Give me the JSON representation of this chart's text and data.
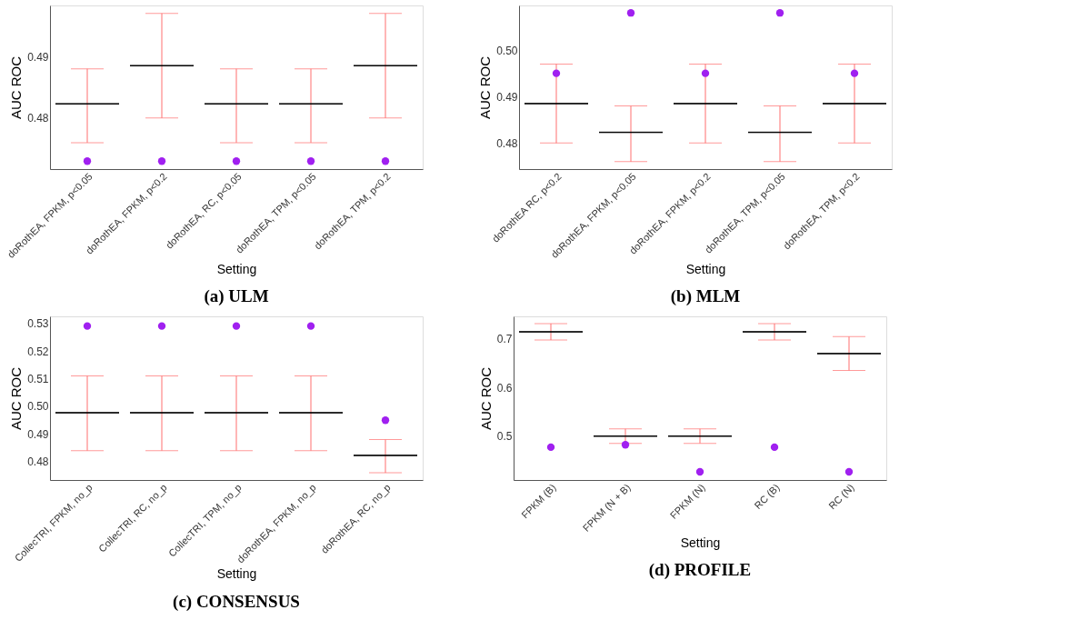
{
  "chart_data": [
    {
      "type": "box",
      "title": "(a) ULM",
      "xlabel": "Setting",
      "ylabel": "AUC ROC",
      "categories": [
        "doRothEA, FPKM, p<0.05",
        "doRothEA, FPKM, p<0.2",
        "doRothEA, RC, p<0.05",
        "doRothEA, TPM, p<0.05",
        "doRothEA, TPM, p<0.2"
      ],
      "ylim": [
        0.4717,
        0.4983
      ],
      "yticks": [
        0.48,
        0.49
      ],
      "grid": false,
      "marker": "circle",
      "series": [
        {
          "color": "#000000",
          "boxes": [
            {
              "low": 0.476,
              "q1": 0.4823,
              "median": 0.4823,
              "q3": 0.4823,
              "high": 0.488
            },
            {
              "low": 0.48,
              "q1": 0.4885,
              "median": 0.4885,
              "q3": 0.4885,
              "high": 0.497
            },
            {
              "low": 0.476,
              "q1": 0.4823,
              "median": 0.4823,
              "q3": 0.4823,
              "high": 0.488
            },
            {
              "low": 0.476,
              "q1": 0.4823,
              "median": 0.4823,
              "q3": 0.4823,
              "high": 0.488
            },
            {
              "low": 0.48,
              "q1": 0.4885,
              "median": 0.4885,
              "q3": 0.4885,
              "high": 0.497
            }
          ]
        },
        {
          "type": "scatter",
          "color": "#a020f0",
          "x": [
            "doRothEA, FPKM, p<0.05",
            "doRothEA, FPKM, p<0.2",
            "doRothEA, RC, p<0.05",
            "doRothEA, TPM, p<0.05",
            "doRothEA, TPM, p<0.2"
          ],
          "values": [
            0.473,
            0.473,
            0.473,
            0.473,
            0.473
          ]
        }
      ]
    },
    {
      "type": "box",
      "title": "(b) MLM",
      "xlabel": "Setting",
      "ylabel": "AUC ROC",
      "categories": [
        "doRothEA RC, p<0.2",
        "doRothEA, FPKM, p<0.05",
        "doRothEA, FPKM, p<0.2",
        "doRothEA, TPM, p<0.05",
        "doRothEA, TPM, p<0.2"
      ],
      "ylim": [
        0.4744,
        0.5096
      ],
      "yticks": [
        0.48,
        0.49,
        {
          "value": 0.5,
          "label": "0.50"
        }
      ],
      "grid": false,
      "marker": "circle",
      "series": [
        {
          "color": "#000000",
          "boxes": [
            {
              "low": 0.48,
              "q1": 0.4885,
              "median": 0.4885,
              "q3": 0.4885,
              "high": 0.497
            },
            {
              "low": 0.476,
              "q1": 0.4823,
              "median": 0.4823,
              "q3": 0.4823,
              "high": 0.488
            },
            {
              "low": 0.48,
              "q1": 0.4885,
              "median": 0.4885,
              "q3": 0.4885,
              "high": 0.497
            },
            {
              "low": 0.476,
              "q1": 0.4823,
              "median": 0.4823,
              "q3": 0.4823,
              "high": 0.488
            },
            {
              "low": 0.48,
              "q1": 0.4885,
              "median": 0.4885,
              "q3": 0.4885,
              "high": 0.497
            }
          ]
        },
        {
          "type": "scatter",
          "color": "#a020f0",
          "x": [
            "doRothEA RC, p<0.2",
            "doRothEA, FPKM, p<0.05",
            "doRothEA, FPKM, p<0.2",
            "doRothEA, TPM, p<0.05",
            "doRothEA, TPM, p<0.2"
          ],
          "values": [
            0.495,
            0.508,
            0.495,
            0.508,
            0.495
          ]
        }
      ]
    },
    {
      "type": "box",
      "title": "(c) CONSENSUS",
      "xlabel": "Setting",
      "ylabel": "AUC ROC",
      "categories": [
        "CollecTRI, FPKM, no_p",
        "CollecTRI, RC, no_p",
        "CollecTRI, TPM, no_p",
        "doRothEA, FPKM, no_p",
        "doRothEA, RC, no_p"
      ],
      "ylim": [
        0.4734,
        0.5325
      ],
      "yticks": [
        0.48,
        0.49,
        {
          "value": 0.5,
          "label": "0.50"
        },
        0.51,
        0.52,
        0.53
      ],
      "grid": false,
      "marker": "circle",
      "series": [
        {
          "color": "#000000",
          "boxes": [
            {
              "low": 0.484,
              "q1": 0.4977,
              "median": 0.4977,
              "q3": 0.4977,
              "high": 0.511
            },
            {
              "low": 0.484,
              "q1": 0.4977,
              "median": 0.4977,
              "q3": 0.4977,
              "high": 0.511
            },
            {
              "low": 0.484,
              "q1": 0.4977,
              "median": 0.4977,
              "q3": 0.4977,
              "high": 0.511
            },
            {
              "low": 0.484,
              "q1": 0.4977,
              "median": 0.4977,
              "q3": 0.4977,
              "high": 0.511
            },
            {
              "low": 0.476,
              "q1": 0.4823,
              "median": 0.4823,
              "q3": 0.4823,
              "high": 0.488
            }
          ]
        },
        {
          "type": "scatter",
          "color": "#a020f0",
          "x": [
            "CollecTRI, FPKM, no_p",
            "CollecTRI, RC, no_p",
            "CollecTRI, TPM, no_p",
            "doRothEA, FPKM, no_p",
            "doRothEA, RC, no_p"
          ],
          "values": [
            0.529,
            0.529,
            0.529,
            0.529,
            0.495
          ]
        }
      ]
    },
    {
      "type": "box",
      "title": "(d) PROFILE",
      "xlabel": "Setting",
      "ylabel": "AUC ROC",
      "categories": [
        "FPKM (B)",
        "FPKM (N + B)",
        "FPKM (N)",
        "RC (B)",
        "RC (N)"
      ],
      "ylim": [
        0.408,
        0.747
      ],
      "yticks": [
        0.5,
        0.6,
        0.7
      ],
      "grid": false,
      "marker": "circle",
      "series": [
        {
          "color": "#000000",
          "boxes": [
            {
              "low": 0.698,
              "q1": 0.715,
              "median": 0.715,
              "q3": 0.715,
              "high": 0.732
            },
            {
              "low": 0.484,
              "q1": 0.499,
              "median": 0.499,
              "q3": 0.499,
              "high": 0.514
            },
            {
              "low": 0.484,
              "q1": 0.499,
              "median": 0.499,
              "q3": 0.499,
              "high": 0.514
            },
            {
              "low": 0.698,
              "q1": 0.715,
              "median": 0.715,
              "q3": 0.715,
              "high": 0.732
            },
            {
              "low": 0.635,
              "q1": 0.67,
              "median": 0.67,
              "q3": 0.67,
              "high": 0.705
            }
          ]
        },
        {
          "type": "scatter",
          "color": "#a020f0",
          "x": [
            "FPKM (B)",
            "FPKM (N + B)",
            "FPKM (N)",
            "RC (B)",
            "RC (N)"
          ],
          "values": [
            0.476,
            0.481,
            0.425,
            0.476,
            0.425
          ]
        }
      ]
    }
  ]
}
